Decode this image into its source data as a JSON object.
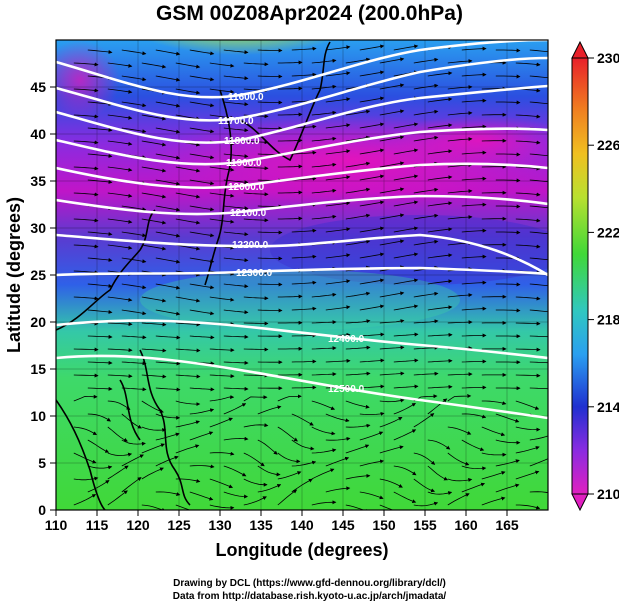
{
  "title": "GSM 00Z08Apr2024 (200.0hPa)",
  "xlabel": "Longitude (degrees)",
  "ylabel": "Latitude (degrees)",
  "xticks": [
    "110",
    "115",
    "120",
    "125",
    "130",
    "135",
    "140",
    "145",
    "150",
    "155",
    "160",
    "165"
  ],
  "yticks": [
    "0",
    "5",
    "10",
    "15",
    "20",
    "25",
    "30",
    "35",
    "40",
    "45"
  ],
  "colorbar": {
    "ticks": [
      "230",
      "226",
      "222",
      "218",
      "214",
      "210"
    ],
    "range": [
      210,
      230
    ]
  },
  "contour_labels": [
    "11600.0",
    "11700.0",
    "11800.0",
    "11900.0",
    "12000.0",
    "12100.0",
    "12200.0",
    "12300.0",
    "12400.0",
    "12500.0"
  ],
  "footer": {
    "line1": "Drawing by DCL (https://www.gfd-dennou.org/library/dcl/)",
    "line2": "Data from http://database.rish.kyoto-u.ac.jp/arch/jmadata/"
  },
  "chart_data": {
    "type": "heatmap",
    "title": "GSM 00Z08Apr2024 (200.0hPa)",
    "xlabel": "Longitude (degrees)",
    "ylabel": "Latitude (degrees)",
    "xlim": [
      110,
      170
    ],
    "ylim": [
      0,
      50
    ],
    "colorbar_range": [
      210,
      230
    ],
    "contour_levels": [
      11600,
      11700,
      11800,
      11900,
      12000,
      12100,
      12200,
      12300,
      12400,
      12500
    ],
    "grid": true
  }
}
